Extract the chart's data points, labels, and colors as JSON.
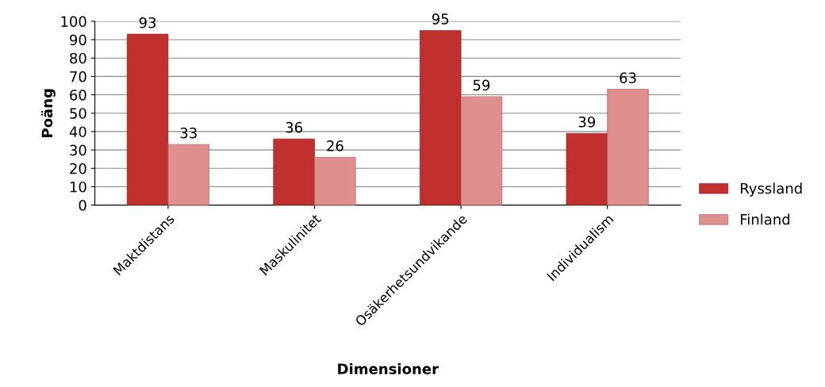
{
  "chart_data": {
    "type": "bar",
    "xlabel": "Dimensioner",
    "ylabel": "Poäng",
    "categories": [
      "Maktdistans",
      "Maskulinitet",
      "Osäkerhetsundvikande",
      "Individualism"
    ],
    "series": [
      {
        "name": "Ryssland",
        "color": "#c0302f",
        "values": [
          93,
          36,
          95,
          39
        ]
      },
      {
        "name": "Finland",
        "color": "#e08f8f",
        "values": [
          33,
          26,
          59,
          63
        ]
      }
    ],
    "ylim": [
      0,
      100
    ],
    "yticks": [
      0,
      10,
      20,
      30,
      40,
      50,
      60,
      70,
      80,
      90,
      100
    ],
    "grid": "y",
    "legend": "right",
    "data_labels": true
  }
}
